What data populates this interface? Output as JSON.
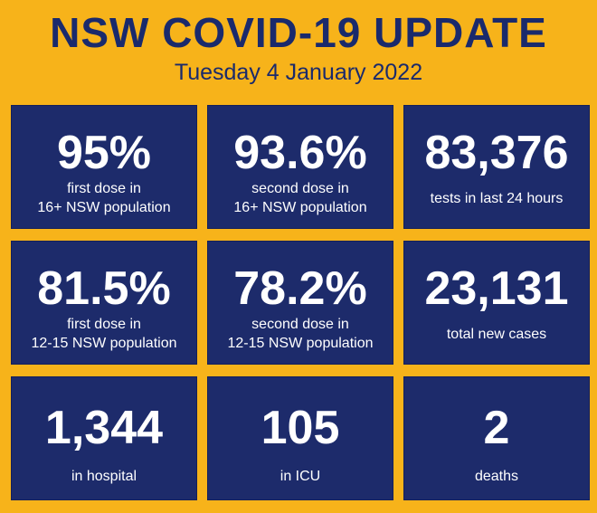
{
  "header": {
    "title": "NSW COVID-19 UPDATE",
    "date": "Tuesday 4 January 2022"
  },
  "tiles": [
    {
      "value": "95%",
      "label": "first dose in\n16+ NSW population"
    },
    {
      "value": "93.6%",
      "label": "second dose in\n16+ NSW population"
    },
    {
      "value": "83,376",
      "label": "tests in last 24 hours"
    },
    {
      "value": "81.5%",
      "label": "first dose in\n12-15 NSW population"
    },
    {
      "value": "78.2%",
      "label": "second dose in\n12-15 NSW population"
    },
    {
      "value": "23,131",
      "label": "total new cases"
    },
    {
      "value": "1,344",
      "label": "in hospital"
    },
    {
      "value": "105",
      "label": "in ICU"
    },
    {
      "value": "2",
      "label": "deaths"
    }
  ],
  "colors": {
    "background": "#f7b31a",
    "tile": "#1d2b6b",
    "title_text": "#1a2a6c",
    "tile_text": "#ffffff"
  }
}
